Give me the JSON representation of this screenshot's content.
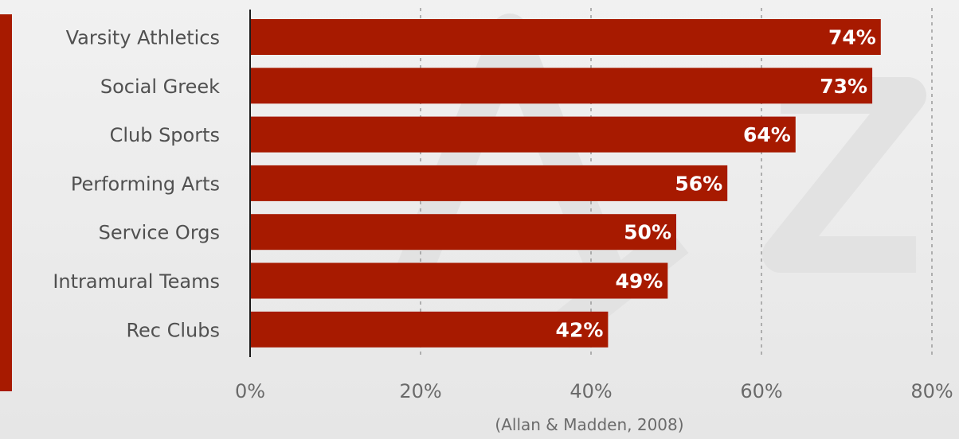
{
  "chart_data": {
    "type": "bar",
    "orientation": "horizontal",
    "categories": [
      "Varsity Athletics",
      "Social Greek",
      "Club Sports",
      "Performing Arts",
      "Service Orgs",
      "Intramural Teams",
      "Rec Clubs"
    ],
    "values": [
      74,
      73,
      64,
      56,
      50,
      49,
      42
    ],
    "value_labels": [
      "74%",
      "73%",
      "64%",
      "56%",
      "50%",
      "49%",
      "42%"
    ],
    "x_ticks": [
      "0%",
      "20%",
      "40%",
      "60%",
      "80%"
    ],
    "xlim": [
      0,
      80
    ],
    "grid": "vertical-dashed",
    "title": "",
    "xlabel": "",
    "ylabel": "",
    "source": "(Allan & Madden, 2008)",
    "bar_color": "#a71a00",
    "label_color": "#ffffff"
  }
}
